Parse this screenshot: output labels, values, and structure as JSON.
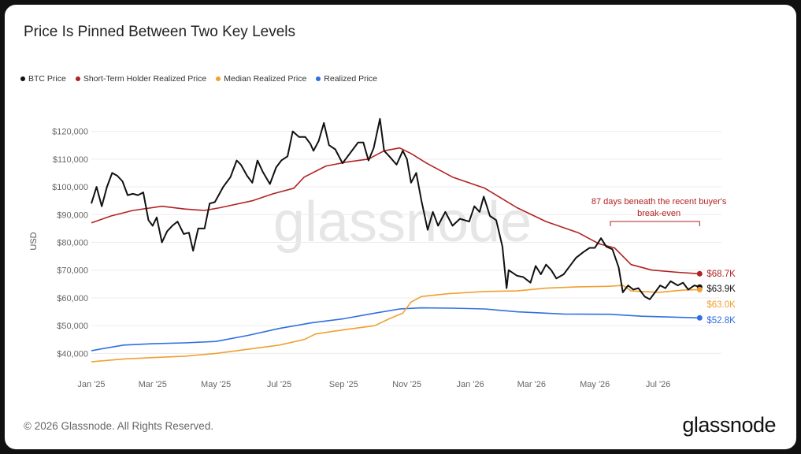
{
  "title": "Price Is Pinned Between Two Key Levels",
  "legend": [
    {
      "label": "BTC Price",
      "color": "#111111"
    },
    {
      "label": "Short-Term Holder Realized Price",
      "color": "#b22222"
    },
    {
      "label": "Median Realized Price",
      "color": "#f0a030"
    },
    {
      "label": "Realized Price",
      "color": "#2f6fe0"
    }
  ],
  "footer": {
    "copyright": "© 2026 Glassnode. All Rights Reserved.",
    "brand": "glassnode"
  },
  "watermark": "glassnode",
  "chart_data": {
    "type": "line",
    "ylabel": "USD",
    "ylim": [
      35000,
      125000
    ],
    "yticks": [
      40000,
      50000,
      60000,
      70000,
      80000,
      90000,
      100000,
      110000,
      120000
    ],
    "ytick_labels": [
      "$40,000",
      "$50,000",
      "$60,000",
      "$70,000",
      "$80,000",
      "$90,000",
      "$100,000",
      "$110,000",
      "$120,000"
    ],
    "xlim": [
      "2025-01-01",
      "2026-08-31"
    ],
    "xticks": [
      "2025-01-01",
      "2025-03-01",
      "2025-05-01",
      "2025-07-01",
      "2025-09-01",
      "2025-11-01",
      "2026-01-01",
      "2026-03-01",
      "2026-05-01",
      "2026-07-01"
    ],
    "xtick_labels": [
      "Jan '25",
      "Mar '25",
      "May '25",
      "Jul '25",
      "Sep '25",
      "Nov '25",
      "Jan '26",
      "Mar '26",
      "May '26",
      "Jul '26"
    ],
    "series": [
      {
        "name": "BTC Price",
        "color": "#111111",
        "points": [
          [
            "2025-01-01",
            94000
          ],
          [
            "2025-01-06",
            100000
          ],
          [
            "2025-01-11",
            93000
          ],
          [
            "2025-01-16",
            100000
          ],
          [
            "2025-01-21",
            105000
          ],
          [
            "2025-01-26",
            104000
          ],
          [
            "2025-01-31",
            102000
          ],
          [
            "2025-02-05",
            97000
          ],
          [
            "2025-02-10",
            97500
          ],
          [
            "2025-02-15",
            97000
          ],
          [
            "2025-02-20",
            98000
          ],
          [
            "2025-02-25",
            88000
          ],
          [
            "2025-03-01",
            86000
          ],
          [
            "2025-03-05",
            89000
          ],
          [
            "2025-03-10",
            80000
          ],
          [
            "2025-03-15",
            84000
          ],
          [
            "2025-03-20",
            86000
          ],
          [
            "2025-03-25",
            87500
          ],
          [
            "2025-03-31",
            83000
          ],
          [
            "2025-04-05",
            83500
          ],
          [
            "2025-04-09",
            77000
          ],
          [
            "2025-04-14",
            85000
          ],
          [
            "2025-04-20",
            85000
          ],
          [
            "2025-04-25",
            94000
          ],
          [
            "2025-04-30",
            94500
          ],
          [
            "2025-05-08",
            100000
          ],
          [
            "2025-05-15",
            103500
          ],
          [
            "2025-05-21",
            109500
          ],
          [
            "2025-05-25",
            108000
          ],
          [
            "2025-05-31",
            104000
          ],
          [
            "2025-06-05",
            101500
          ],
          [
            "2025-06-10",
            109500
          ],
          [
            "2025-06-15",
            105500
          ],
          [
            "2025-06-22",
            101000
          ],
          [
            "2025-06-28",
            107000
          ],
          [
            "2025-07-03",
            109500
          ],
          [
            "2025-07-09",
            111000
          ],
          [
            "2025-07-14",
            120000
          ],
          [
            "2025-07-20",
            118000
          ],
          [
            "2025-07-26",
            118000
          ],
          [
            "2025-07-31",
            115500
          ],
          [
            "2025-08-03",
            113000
          ],
          [
            "2025-08-08",
            116500
          ],
          [
            "2025-08-13",
            123000
          ],
          [
            "2025-08-18",
            115000
          ],
          [
            "2025-08-24",
            113500
          ],
          [
            "2025-08-31",
            108500
          ],
          [
            "2025-09-05",
            111000
          ],
          [
            "2025-09-10",
            113500
          ],
          [
            "2025-09-15",
            116000
          ],
          [
            "2025-09-20",
            116000
          ],
          [
            "2025-09-25",
            109500
          ],
          [
            "2025-09-30",
            114000
          ],
          [
            "2025-10-06",
            124500
          ],
          [
            "2025-10-10",
            113000
          ],
          [
            "2025-10-15",
            111000
          ],
          [
            "2025-10-22",
            108000
          ],
          [
            "2025-10-28",
            113000
          ],
          [
            "2025-11-01",
            110000
          ],
          [
            "2025-11-05",
            101500
          ],
          [
            "2025-11-10",
            105000
          ],
          [
            "2025-11-15",
            95000
          ],
          [
            "2025-11-21",
            84500
          ],
          [
            "2025-11-26",
            91000
          ],
          [
            "2025-12-01",
            86000
          ],
          [
            "2025-12-08",
            91000
          ],
          [
            "2025-12-15",
            86000
          ],
          [
            "2025-12-22",
            88500
          ],
          [
            "2025-12-31",
            87500
          ],
          [
            "2026-01-05",
            93000
          ],
          [
            "2026-01-10",
            91000
          ],
          [
            "2026-01-14",
            96500
          ],
          [
            "2026-01-20",
            89500
          ],
          [
            "2026-01-26",
            88000
          ],
          [
            "2026-02-01",
            78500
          ],
          [
            "2026-02-05",
            63500
          ],
          [
            "2026-02-07",
            70000
          ],
          [
            "2026-02-15",
            68000
          ],
          [
            "2026-02-21",
            67500
          ],
          [
            "2026-02-28",
            65500
          ],
          [
            "2026-03-05",
            71500
          ],
          [
            "2026-03-10",
            68500
          ],
          [
            "2026-03-15",
            72000
          ],
          [
            "2026-03-20",
            70000
          ],
          [
            "2026-03-25",
            67000
          ],
          [
            "2026-04-01",
            68500
          ],
          [
            "2026-04-08",
            72000
          ],
          [
            "2026-04-13",
            74500
          ],
          [
            "2026-04-20",
            76500
          ],
          [
            "2026-04-26",
            78000
          ],
          [
            "2026-05-01",
            78000
          ],
          [
            "2026-05-07",
            81500
          ],
          [
            "2026-05-12",
            78500
          ],
          [
            "2026-05-18",
            77500
          ],
          [
            "2026-05-24",
            71000
          ],
          [
            "2026-05-28",
            62000
          ],
          [
            "2026-06-02",
            64500
          ],
          [
            "2026-06-07",
            63000
          ],
          [
            "2026-06-12",
            63500
          ],
          [
            "2026-06-18",
            60500
          ],
          [
            "2026-06-23",
            59500
          ],
          [
            "2026-06-28",
            62000
          ],
          [
            "2026-07-03",
            64500
          ],
          [
            "2026-07-08",
            63500
          ],
          [
            "2026-07-13",
            66000
          ],
          [
            "2026-07-20",
            64500
          ],
          [
            "2026-07-25",
            65500
          ],
          [
            "2026-07-30",
            63000
          ],
          [
            "2026-08-05",
            64500
          ],
          [
            "2026-08-10",
            63900
          ]
        ]
      },
      {
        "name": "Short-Term Holder Realized Price",
        "color": "#b22222",
        "points": [
          [
            "2025-01-01",
            87000
          ],
          [
            "2025-01-20",
            89500
          ],
          [
            "2025-02-10",
            91500
          ],
          [
            "2025-03-10",
            93000
          ],
          [
            "2025-04-01",
            92000
          ],
          [
            "2025-04-20",
            91500
          ],
          [
            "2025-05-05",
            92500
          ],
          [
            "2025-06-05",
            95000
          ],
          [
            "2025-06-25",
            97500
          ],
          [
            "2025-07-15",
            99500
          ],
          [
            "2025-07-25",
            103500
          ],
          [
            "2025-08-15",
            107500
          ],
          [
            "2025-09-05",
            109000
          ],
          [
            "2025-09-25",
            110000
          ],
          [
            "2025-10-10",
            113000
          ],
          [
            "2025-10-25",
            114000
          ],
          [
            "2025-11-05",
            112000
          ],
          [
            "2025-11-20",
            108500
          ],
          [
            "2025-12-15",
            103500
          ],
          [
            "2026-01-15",
            99500
          ],
          [
            "2026-02-15",
            92500
          ],
          [
            "2026-03-15",
            87500
          ],
          [
            "2026-04-15",
            83500
          ],
          [
            "2026-05-05",
            79500
          ],
          [
            "2026-05-20",
            78000
          ],
          [
            "2026-06-05",
            72000
          ],
          [
            "2026-06-25",
            70000
          ],
          [
            "2026-07-20",
            69200
          ],
          [
            "2026-08-10",
            68700
          ]
        ]
      },
      {
        "name": "Median Realized Price",
        "color": "#f0a030",
        "points": [
          [
            "2025-01-01",
            37000
          ],
          [
            "2025-02-01",
            38000
          ],
          [
            "2025-03-01",
            38500
          ],
          [
            "2025-04-01",
            39000
          ],
          [
            "2025-05-01",
            40000
          ],
          [
            "2025-06-01",
            41500
          ],
          [
            "2025-07-01",
            43000
          ],
          [
            "2025-07-25",
            45000
          ],
          [
            "2025-08-05",
            47000
          ],
          [
            "2025-09-01",
            48500
          ],
          [
            "2025-10-01",
            50000
          ],
          [
            "2025-10-15",
            52500
          ],
          [
            "2025-10-28",
            54500
          ],
          [
            "2025-11-05",
            58500
          ],
          [
            "2025-11-15",
            60500
          ],
          [
            "2025-12-10",
            61500
          ],
          [
            "2026-01-15",
            62300
          ],
          [
            "2026-02-15",
            62500
          ],
          [
            "2026-03-15",
            63500
          ],
          [
            "2026-04-15",
            64000
          ],
          [
            "2026-05-15",
            64200
          ],
          [
            "2026-05-28",
            64500
          ],
          [
            "2026-06-05",
            62500
          ],
          [
            "2026-07-01",
            62000
          ],
          [
            "2026-07-25",
            62800
          ],
          [
            "2026-08-10",
            63000
          ]
        ]
      },
      {
        "name": "Realized Price",
        "color": "#2f6fe0",
        "points": [
          [
            "2025-01-01",
            41000
          ],
          [
            "2025-02-01",
            43000
          ],
          [
            "2025-03-01",
            43500
          ],
          [
            "2025-04-01",
            43800
          ],
          [
            "2025-05-01",
            44300
          ],
          [
            "2025-06-01",
            46500
          ],
          [
            "2025-07-01",
            49000
          ],
          [
            "2025-08-01",
            51000
          ],
          [
            "2025-09-01",
            52500
          ],
          [
            "2025-10-01",
            54500
          ],
          [
            "2025-10-25",
            56000
          ],
          [
            "2025-11-15",
            56400
          ],
          [
            "2025-12-15",
            56300
          ],
          [
            "2026-01-15",
            56000
          ],
          [
            "2026-02-15",
            55000
          ],
          [
            "2026-04-01",
            54200
          ],
          [
            "2026-05-15",
            54100
          ],
          [
            "2026-06-15",
            53400
          ],
          [
            "2026-08-10",
            52800
          ]
        ]
      }
    ],
    "end_labels": [
      {
        "series": "Short-Term Holder Realized Price",
        "value": 68700,
        "label": "$68.7K",
        "color": "#b22222"
      },
      {
        "series": "BTC Price",
        "value": 63900,
        "label": "$63.9K",
        "color": "#111111"
      },
      {
        "series": "Median Realized Price",
        "value": 63000,
        "label": "$63.0K",
        "color": "#f0a030"
      },
      {
        "series": "Realized Price",
        "value": 52800,
        "label": "$52.8K",
        "color": "#2f6fe0"
      }
    ],
    "annotation": {
      "text_line1": "87 days beneath the recent buyer's",
      "text_line2": "break-even",
      "color": "#b22222",
      "x_start": "2026-05-16",
      "x_end": "2026-08-10"
    },
    "grid": "horizontal",
    "legend_position": "top-left"
  }
}
